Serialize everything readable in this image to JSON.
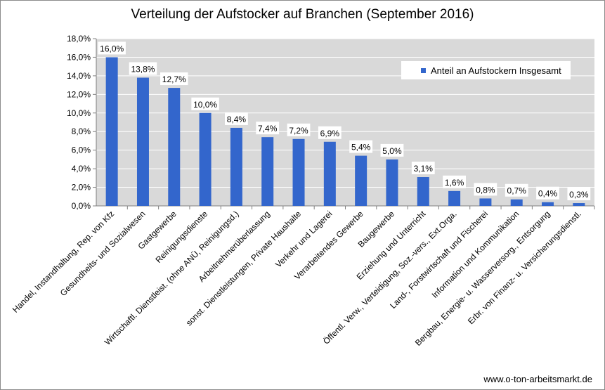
{
  "chart_data": {
    "type": "bar",
    "title": "Verteilung der Aufstocker auf Branchen (September 2016)",
    "xlabel": "",
    "ylabel": "",
    "ylim": [
      0,
      18
    ],
    "y_tick_step": 2,
    "y_tick_labels": [
      "0,0%",
      "2,0%",
      "4,0%",
      "6,0%",
      "8,0%",
      "10,0%",
      "12,0%",
      "14,0%",
      "16,0%",
      "18,0%"
    ],
    "grid": true,
    "legend_position": "top-right",
    "categories": [
      "Handel, Instandhaltung, Rep. von Kfz",
      "Gesundheits- und Sozialwesen",
      "Gastgewerbe",
      "Reinigungsdienste",
      "Wirtschaftl. Dienstleist. (ohne ANÜ, Reinigungsd.)",
      "Arbeitnehmerüberlassung",
      "sonst. Dienstleistungen, Private Haushalte",
      "Verkehr und Lagerei",
      "Verarbeitendes Gewerbe",
      "Baugewerbe",
      "Erziehung und Unterricht",
      "Öffentl. Verw., Verteidigung, Soz.-vers., Ext.Orga.",
      "Land-, Forstwirtschaft und Fischerei",
      "Information und Kommunikation",
      "Bergbau, Energie- u. Wasserversorg., Entsorgung",
      "Erbr. von Finanz- u. Versicherungsdienstl."
    ],
    "series": [
      {
        "name": "Anteil an Aufstockern Insgesamt",
        "color": "#3366cc",
        "values": [
          16.0,
          13.8,
          12.7,
          10.0,
          8.4,
          7.4,
          7.2,
          6.9,
          5.4,
          5.0,
          3.1,
          1.6,
          0.8,
          0.7,
          0.4,
          0.3
        ],
        "data_labels": [
          "16,0%",
          "13,8%",
          "12,7%",
          "10,0%",
          "8,4%",
          "7,4%",
          "7,2%",
          "6,9%",
          "5,4%",
          "5,0%",
          "3,1%",
          "1,6%",
          "0,8%",
          "0,7%",
          "0,4%",
          "0,3%"
        ]
      }
    ],
    "plot_background": "#d9d9d9",
    "gridline_color": "#ffffff"
  },
  "source_note": "www.o-ton-arbeitsmarkt.de"
}
